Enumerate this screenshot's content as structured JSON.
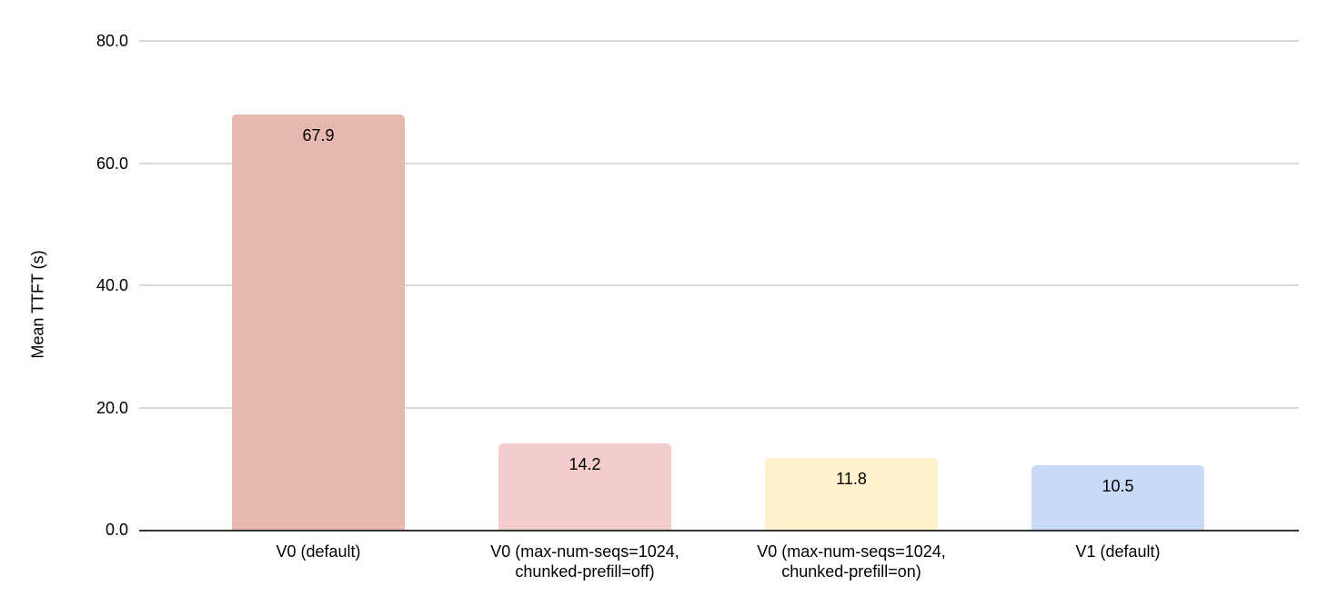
{
  "chart_data": {
    "type": "bar",
    "title": "",
    "xlabel": "",
    "ylabel": "Mean TTFT (s)",
    "categories": [
      "V0 (default)",
      "V0 (max-num-seqs=1024, chunked-prefill=off)",
      "V0 (max-num-seqs=1024, chunked-prefill=on)",
      "V1 (default)"
    ],
    "category_lines": [
      [
        "V0 (default)"
      ],
      [
        "V0 (max-num-seqs=1024,",
        "chunked-prefill=off)"
      ],
      [
        "V0 (max-num-seqs=1024,",
        "chunked-prefill=on)"
      ],
      [
        "V1 (default)"
      ]
    ],
    "values": [
      67.9,
      14.2,
      11.8,
      10.5
    ],
    "value_labels": [
      "67.9",
      "14.2",
      "11.8",
      "10.5"
    ],
    "bar_colors": [
      "#e6b8af",
      "#f4cccc",
      "#fff2cc",
      "#c9daf8"
    ],
    "ylim": [
      0,
      80
    ],
    "yticks": [
      0,
      20,
      40,
      60,
      80
    ],
    "ytick_labels": [
      "0.0",
      "20.0",
      "40.0",
      "60.0",
      "80.0"
    ],
    "grid": true,
    "legend": "none",
    "colors": {
      "gridline": "#d9d9d9",
      "axis_line": "#333333",
      "text": "#000000",
      "background": "#ffffff"
    }
  }
}
